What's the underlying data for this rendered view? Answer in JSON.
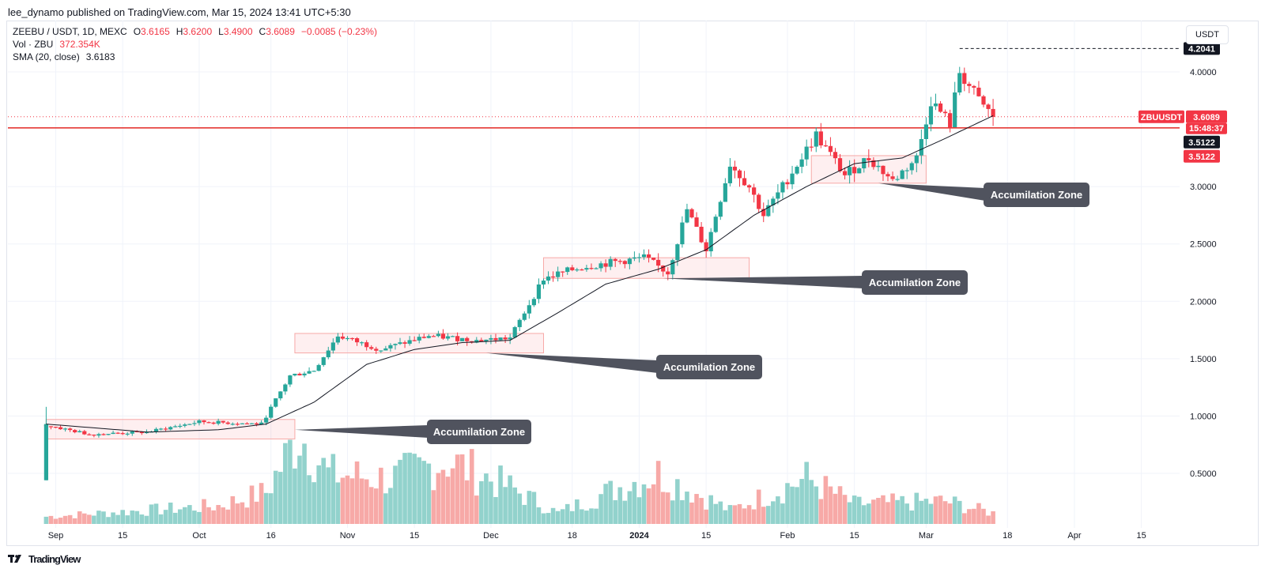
{
  "header": {
    "credit": "lee_dynamo published on TradingView.com, Mar 15, 2024 13:41 UTC+5:30"
  },
  "legend": {
    "symbol": "ZEEBU / USDT, 1D, MEXC",
    "o_label": "O",
    "o_value": "3.6165",
    "h_label": "H",
    "h_value": "3.6200",
    "l_label": "L",
    "l_value": "3.4900",
    "c_label": "C",
    "c_value": "3.6089",
    "change": "−0.0085 (−0.23%)",
    "vol_label": "Vol · ZBU",
    "vol_value": "372.354K",
    "sma_label": "SMA (20, close)",
    "sma_value": "3.6183"
  },
  "unit_button": "USDT",
  "footer": {
    "brand": "TradingView"
  },
  "colors": {
    "up": "#26a69a",
    "down": "#f23645",
    "vol_up": "#92d2cc",
    "vol_down": "#f7a9a7",
    "sma": "#131722",
    "resistance": "#e53935",
    "label_bg": "#50535e"
  },
  "chart_data": {
    "type": "candlestick",
    "title": "",
    "xlabel": "",
    "ylabel": "",
    "ylim": [
      0.1,
      4.45
    ],
    "x_range": [
      "2023-08-22",
      "2024-04-23"
    ],
    "grid": true,
    "y_ticks": [
      "0.5000",
      "1.0000",
      "1.5000",
      "2.0000",
      "2.5000",
      "3.0000",
      "4.0000"
    ],
    "x_ticks": [
      {
        "label": "Sep",
        "date": "2023-09-01"
      },
      {
        "label": "15",
        "date": "2023-09-15"
      },
      {
        "label": "Oct",
        "date": "2023-10-01"
      },
      {
        "label": "16",
        "date": "2023-10-16"
      },
      {
        "label": "Nov",
        "date": "2023-11-01"
      },
      {
        "label": "15",
        "date": "2023-11-15"
      },
      {
        "label": "Dec",
        "date": "2023-12-01"
      },
      {
        "label": "18",
        "date": "2023-12-18"
      },
      {
        "label": "2024",
        "date": "2024-01-01"
      },
      {
        "label": "15",
        "date": "2024-01-15"
      },
      {
        "label": "Feb",
        "date": "2024-02-01"
      },
      {
        "label": "15",
        "date": "2024-02-15"
      },
      {
        "label": "Mar",
        "date": "2024-03-01"
      },
      {
        "label": "18",
        "date": "2024-03-18"
      },
      {
        "label": "Apr",
        "date": "2024-04-01"
      },
      {
        "label": "15",
        "date": "2024-04-15"
      }
    ],
    "close_path": [
      {
        "date": "2023-08-30",
        "close": 0.92
      },
      {
        "date": "2023-09-08",
        "close": 0.84
      },
      {
        "date": "2023-09-20",
        "close": 0.86
      },
      {
        "date": "2023-10-01",
        "close": 0.95
      },
      {
        "date": "2023-10-14",
        "close": 0.93
      },
      {
        "date": "2023-10-20",
        "close": 1.35
      },
      {
        "date": "2023-10-25",
        "close": 1.4
      },
      {
        "date": "2023-10-30",
        "close": 1.7
      },
      {
        "date": "2023-11-08",
        "close": 1.58
      },
      {
        "date": "2023-11-18",
        "close": 1.7
      },
      {
        "date": "2023-11-28",
        "close": 1.66
      },
      {
        "date": "2023-12-05",
        "close": 1.68
      },
      {
        "date": "2023-12-12",
        "close": 2.2
      },
      {
        "date": "2023-12-20",
        "close": 2.3
      },
      {
        "date": "2024-01-02",
        "close": 2.38
      },
      {
        "date": "2024-01-07",
        "close": 2.25
      },
      {
        "date": "2024-01-11",
        "close": 2.8
      },
      {
        "date": "2024-01-15",
        "close": 2.45
      },
      {
        "date": "2024-01-20",
        "close": 3.2
      },
      {
        "date": "2024-01-24",
        "close": 3.0
      },
      {
        "date": "2024-01-27",
        "close": 2.75
      },
      {
        "date": "2024-01-31",
        "close": 3.0
      },
      {
        "date": "2024-02-07",
        "close": 3.45
      },
      {
        "date": "2024-02-13",
        "close": 3.1
      },
      {
        "date": "2024-02-18",
        "close": 3.25
      },
      {
        "date": "2024-02-23",
        "close": 3.05
      },
      {
        "date": "2024-02-28",
        "close": 3.25
      },
      {
        "date": "2024-03-02",
        "close": 3.75
      },
      {
        "date": "2024-03-06",
        "close": 3.55
      },
      {
        "date": "2024-03-08",
        "close": 4.0
      },
      {
        "date": "2024-03-12",
        "close": 3.75
      },
      {
        "date": "2024-03-15",
        "close": 3.6089
      }
    ],
    "sma_path": [
      {
        "date": "2023-08-30",
        "value": 0.93
      },
      {
        "date": "2023-09-20",
        "value": 0.86
      },
      {
        "date": "2023-10-05",
        "value": 0.88
      },
      {
        "date": "2023-10-15",
        "value": 0.93
      },
      {
        "date": "2023-10-25",
        "value": 1.12
      },
      {
        "date": "2023-11-05",
        "value": 1.45
      },
      {
        "date": "2023-11-15",
        "value": 1.58
      },
      {
        "date": "2023-11-25",
        "value": 1.64
      },
      {
        "date": "2023-12-05",
        "value": 1.66
      },
      {
        "date": "2023-12-15",
        "value": 1.9
      },
      {
        "date": "2023-12-25",
        "value": 2.15
      },
      {
        "date": "2024-01-05",
        "value": 2.28
      },
      {
        "date": "2024-01-15",
        "value": 2.45
      },
      {
        "date": "2024-01-25",
        "value": 2.75
      },
      {
        "date": "2024-02-05",
        "value": 3.0
      },
      {
        "date": "2024-02-15",
        "value": 3.2
      },
      {
        "date": "2024-02-25",
        "value": 3.25
      },
      {
        "date": "2024-03-05",
        "value": 3.42
      },
      {
        "date": "2024-03-15",
        "value": 3.6183
      }
    ],
    "volume": {
      "max_label": "",
      "start": "2023-08-30",
      "end": "2024-03-15",
      "profile": [
        {
          "date": "2023-08-30",
          "value": 0.08
        },
        {
          "date": "2023-10-05",
          "value": 0.2
        },
        {
          "date": "2023-10-15",
          "value": 0.35
        },
        {
          "date": "2023-10-22",
          "value": 1.0
        },
        {
          "date": "2023-10-28",
          "value": 0.55
        },
        {
          "date": "2023-11-10",
          "value": 0.5
        },
        {
          "date": "2023-11-22",
          "value": 0.7
        },
        {
          "date": "2023-12-05",
          "value": 0.4
        },
        {
          "date": "2023-12-15",
          "value": 0.12
        },
        {
          "date": "2023-12-30",
          "value": 0.45
        },
        {
          "date": "2024-01-05",
          "value": 0.55
        },
        {
          "date": "2024-01-20",
          "value": 0.15
        },
        {
          "date": "2024-02-05",
          "value": 0.5
        },
        {
          "date": "2024-02-15",
          "value": 0.22
        },
        {
          "date": "2024-03-05",
          "value": 0.25
        },
        {
          "date": "2024-03-15",
          "value": 0.12
        }
      ]
    },
    "zones": [
      {
        "label": "Accumilation Zone",
        "from": "2023-08-30",
        "to": "2023-10-21",
        "low": 0.8,
        "high": 0.97
      },
      {
        "label": "Accumilation Zone",
        "from": "2023-10-21",
        "to": "2023-12-12",
        "low": 1.55,
        "high": 1.72
      },
      {
        "label": "Accumilation Zone",
        "from": "2023-12-12",
        "to": "2024-01-24",
        "low": 2.2,
        "high": 2.38
      },
      {
        "label": "Accumilation Zone",
        "from": "2024-02-06",
        "to": "2024-03-01",
        "low": 3.03,
        "high": 3.27
      }
    ],
    "resistance": 3.5122,
    "high_line": 4.2041,
    "tags": {
      "high": "4.2041",
      "symbol": "ZBUUSDT",
      "last": "3.6089",
      "countdown": "15:48:37",
      "level_dark": "3.5122",
      "level_red": "3.5122"
    }
  }
}
